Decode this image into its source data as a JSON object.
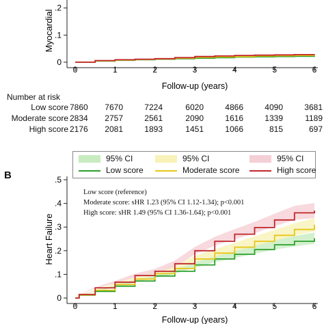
{
  "chart_data": [
    {
      "type": "line",
      "panel": "",
      "ylabel": "Myocardial",
      "xlabel": "Follow-up (years)",
      "xlim": [
        0,
        6
      ],
      "ylim": [
        0,
        0.28
      ],
      "xticks": [
        "0",
        "1",
        "2",
        "3",
        "4",
        "5",
        "6"
      ],
      "yticks": [
        {
          "v": 0,
          "t": "0"
        },
        {
          "v": 0.1,
          "t": ".1"
        },
        {
          "v": 0.2,
          "t": ".2"
        }
      ],
      "series": [
        {
          "name": "Low score",
          "color": "#2ca02c",
          "x": [
            0,
            0.5,
            1,
            1.5,
            2,
            2.5,
            3,
            3.5,
            4,
            4.5,
            5,
            5.5,
            6
          ],
          "y": [
            0,
            0.004,
            0.007,
            0.009,
            0.011,
            0.013,
            0.015,
            0.017,
            0.019,
            0.02,
            0.021,
            0.022,
            0.023
          ]
        },
        {
          "name": "Moderate score",
          "color": "#e6c619",
          "x": [
            0,
            0.5,
            1,
            1.5,
            2,
            2.5,
            3,
            3.5,
            4,
            4.5,
            5,
            5.5,
            6
          ],
          "y": [
            0,
            0.005,
            0.008,
            0.01,
            0.012,
            0.015,
            0.018,
            0.02,
            0.021,
            0.023,
            0.024,
            0.025,
            0.026
          ]
        },
        {
          "name": "High score",
          "color": "#c0262b",
          "x": [
            0,
            0.5,
            1,
            1.5,
            2,
            2.5,
            3,
            3.5,
            4,
            4.5,
            5,
            5.5,
            6
          ],
          "y": [
            0,
            0.006,
            0.009,
            0.011,
            0.013,
            0.017,
            0.021,
            0.023,
            0.025,
            0.026,
            0.027,
            0.028,
            0.029
          ]
        }
      ]
    },
    {
      "type": "line",
      "panel": "B",
      "ylabel": "Heart Failure",
      "xlabel": "Follow-up (years)",
      "xlim": [
        0,
        6
      ],
      "ylim": [
        0,
        0.5
      ],
      "xticks": [
        "0",
        "1",
        "2",
        "3",
        "4",
        "5",
        "6"
      ],
      "yticks": [
        {
          "v": 0,
          "t": "0"
        },
        {
          "v": 0.1,
          "t": ".1"
        },
        {
          "v": 0.2,
          "t": ".2"
        },
        {
          "v": 0.3,
          "t": ".3"
        },
        {
          "v": 0.4,
          "t": ".4"
        },
        {
          "v": 0.5,
          "t": ".5"
        }
      ],
      "annotations": [
        "Low score (reference)",
        "Moderate score: sHR 1.23 (95% CI 1.12-1.34); p<0.001",
        "High score: sHR 1.49 (95% CI 1.36-1.64); p<0.001"
      ],
      "series": [
        {
          "name": "Low score",
          "color": "#2ca02c",
          "band": "#c8ecc0",
          "x": [
            0,
            0.1,
            0.5,
            1,
            1.5,
            2,
            2.5,
            3,
            3.5,
            4,
            4.5,
            5,
            5.5,
            6
          ],
          "y": [
            0,
            0.012,
            0.028,
            0.05,
            0.072,
            0.093,
            0.113,
            0.14,
            0.165,
            0.185,
            0.205,
            0.225,
            0.24,
            0.253
          ]
        },
        {
          "name": "Moderate score",
          "color": "#e6c619",
          "band": "#f8f2b8",
          "x": [
            0,
            0.1,
            0.5,
            1,
            1.5,
            2,
            2.5,
            3,
            3.5,
            4,
            4.5,
            5,
            5.5,
            6
          ],
          "y": [
            0,
            0.013,
            0.033,
            0.057,
            0.08,
            0.103,
            0.125,
            0.165,
            0.19,
            0.215,
            0.24,
            0.265,
            0.29,
            0.31
          ]
        },
        {
          "name": "High score",
          "color": "#c0262b",
          "band": "#f5cfd6",
          "x": [
            0,
            0.1,
            0.5,
            1,
            1.5,
            2,
            2.5,
            3,
            3.5,
            4,
            4.5,
            5,
            5.5,
            6
          ],
          "y": [
            0,
            0.015,
            0.043,
            0.067,
            0.095,
            0.113,
            0.145,
            0.2,
            0.24,
            0.27,
            0.298,
            0.33,
            0.36,
            0.37
          ]
        }
      ]
    }
  ],
  "risk_table": {
    "title": "Number at risk",
    "rows": [
      {
        "label": "Low score",
        "values": [
          "7860",
          "7670",
          "7224",
          "6020",
          "4866",
          "4090",
          "3681"
        ]
      },
      {
        "label": "Moderate score",
        "values": [
          "2834",
          "2757",
          "2561",
          "2090",
          "1616",
          "1339",
          "1189"
        ]
      },
      {
        "label": "High score",
        "values": [
          "2176",
          "2081",
          "1893",
          "1451",
          "1066",
          "815",
          "697"
        ]
      }
    ]
  },
  "legend": {
    "ci_label": "95% CI",
    "items": [
      {
        "name": "Low score",
        "color": "#2ca02c",
        "band": "#c8ecc0"
      },
      {
        "name": "Moderate score",
        "color": "#e6c619",
        "band": "#f8f2b8"
      },
      {
        "name": "High score",
        "color": "#c0262b",
        "band": "#f5cfd6"
      }
    ]
  }
}
